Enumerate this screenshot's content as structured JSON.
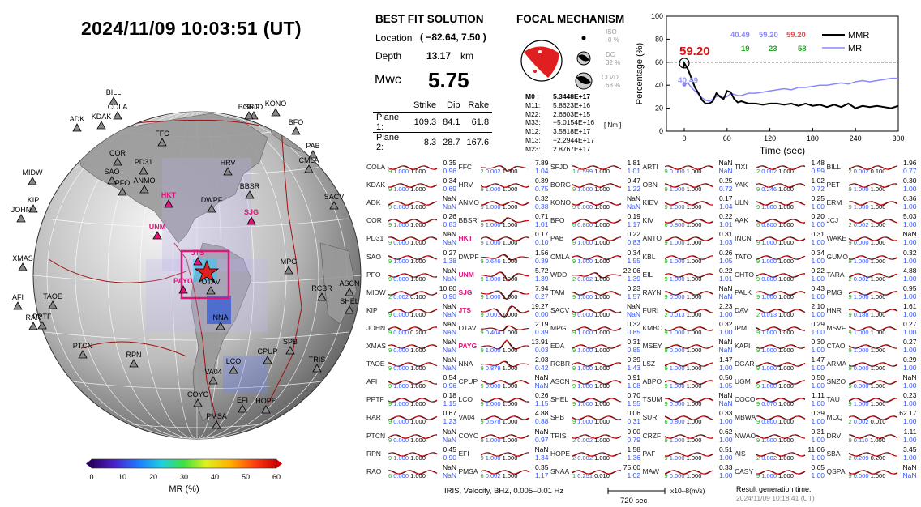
{
  "header": {
    "timestamp": "2024/11/09  10:03:51 (UT)"
  },
  "solution": {
    "heading": "BEST FIT SOLUTION",
    "location_label": "Location",
    "location_value": "( −82.64,  7.50 )",
    "depth_label": "Depth",
    "depth_value": "13.17",
    "depth_unit": "km",
    "mw_label": "Mwc",
    "mw_value": "5.75",
    "plane_cols": [
      "Strike",
      "Dip",
      "Rake"
    ],
    "planes": [
      {
        "label": "Plane 1:",
        "strike": "109.3",
        "dip": "84.1",
        "rake": "61.8"
      },
      {
        "label": "Plane 2:",
        "strike": "8.3",
        "dip": "28.7",
        "rake": "167.6"
      }
    ]
  },
  "focal": {
    "heading": "FOCAL MECHANISM",
    "iso_label": "ISO",
    "iso_value": "0 %",
    "dc_label": "DC",
    "dc_value": "32 %",
    "clvd_label": "CLVD",
    "clvd_value": "68 %",
    "unit": "[ Nm ]",
    "moments": [
      {
        "k": "M0 :",
        "v": "5.3448E+17"
      },
      {
        "k": "M11:",
        "v": "5.8623E+16"
      },
      {
        "k": "M22:",
        "v": "2.6603E+15"
      },
      {
        "k": "M33:",
        "v": "−5.0154E+16"
      },
      {
        "k": "M12:",
        "v": "3.5818E+17"
      },
      {
        "k": "M13:",
        "v": "−2.2944E+17"
      },
      {
        "k": "M23:",
        "v": "2.8767E+17"
      }
    ]
  },
  "chart_data": {
    "type": "line",
    "xlabel": "Time (sec)",
    "ylabel": "Percentage (%)",
    "xlim": [
      -25,
      300
    ],
    "ylim": [
      0,
      100
    ],
    "xticks": [
      0,
      60,
      120,
      180,
      240,
      300
    ],
    "yticks": [
      0,
      20,
      40,
      60,
      80,
      100
    ],
    "reference_line": 60,
    "best_label": "59.20",
    "mr_label": "40.49",
    "legend_values": {
      "blue": [
        "40.49",
        "59.20"
      ],
      "red": [
        "59.20"
      ],
      "green": [
        "19",
        "23",
        "58"
      ]
    },
    "series": [
      {
        "name": "MMR",
        "color": "#000000",
        "x": [
          -1,
          0,
          5,
          10,
          15,
          20,
          25,
          30,
          35,
          40,
          45,
          50,
          55,
          60,
          65,
          70,
          75,
          80,
          90,
          100,
          110,
          120,
          130,
          140,
          150,
          160,
          170,
          180,
          190,
          200,
          210,
          220,
          230,
          240,
          250,
          260,
          270,
          280,
          290,
          300
        ],
        "y": [
          55,
          59.2,
          54,
          46,
          38,
          33,
          27,
          24,
          24,
          26,
          33,
          30,
          28,
          35,
          34,
          28,
          25,
          26,
          24,
          24,
          23,
          24,
          24,
          23,
          24,
          22,
          24,
          22,
          23,
          21,
          23,
          21,
          24,
          20,
          22,
          21,
          22,
          21,
          20,
          22
        ]
      },
      {
        "name": "MR",
        "color": "#8888ff",
        "x": [
          -1,
          0,
          5,
          10,
          15,
          20,
          25,
          30,
          35,
          40,
          45,
          50,
          55,
          60,
          65,
          70,
          75,
          80,
          90,
          100,
          110,
          120,
          130,
          140,
          150,
          160,
          170,
          180,
          190,
          200,
          210,
          220,
          230,
          240,
          250,
          260,
          270,
          280,
          290,
          300
        ],
        "y": [
          40,
          40.49,
          42,
          38,
          35,
          32,
          29,
          27,
          26,
          28,
          30,
          31,
          29,
          30,
          33,
          32,
          31,
          31,
          33,
          33,
          34,
          35,
          36,
          37,
          36,
          38,
          38,
          39,
          40,
          40,
          41,
          42,
          41,
          43,
          44,
          43,
          44,
          45,
          46,
          46
        ]
      }
    ]
  },
  "globe": {
    "stations": [
      {
        "n": "BILL",
        "red": false
      },
      {
        "n": "COLA",
        "red": false
      },
      {
        "n": "ADK",
        "red": false
      },
      {
        "n": "KDAK",
        "red": false
      },
      {
        "n": "SFJD",
        "red": false
      },
      {
        "n": "BORG",
        "red": false
      },
      {
        "n": "KONO",
        "red": false
      },
      {
        "n": "BFO",
        "red": false
      },
      {
        "n": "FFC",
        "red": false
      },
      {
        "n": "COR",
        "red": false
      },
      {
        "n": "PD31",
        "red": false
      },
      {
        "n": "SAO",
        "red": false
      },
      {
        "n": "PFO",
        "red": false
      },
      {
        "n": "ANMO",
        "red": false
      },
      {
        "n": "HRV",
        "red": false
      },
      {
        "n": "PAB",
        "red": false
      },
      {
        "n": "CMLA",
        "red": false
      },
      {
        "n": "BBSR",
        "red": false
      },
      {
        "n": "MIDW",
        "red": false
      },
      {
        "n": "KIP",
        "red": false
      },
      {
        "n": "JOHN",
        "red": false
      },
      {
        "n": "HKT",
        "red": true
      },
      {
        "n": "DWPF",
        "red": false
      },
      {
        "n": "UNM",
        "red": true
      },
      {
        "n": "SJG",
        "red": true
      },
      {
        "n": "SACV",
        "red": false
      },
      {
        "n": "JTS",
        "red": true
      },
      {
        "n": "XMAS",
        "red": false
      },
      {
        "n": "MPG",
        "red": false
      },
      {
        "n": "PAYG",
        "red": true
      },
      {
        "n": "OTAV",
        "red": false
      },
      {
        "n": "ASCN",
        "red": false
      },
      {
        "n": "RCBR",
        "red": false
      },
      {
        "n": "SHEL",
        "red": false
      },
      {
        "n": "AFI",
        "red": false
      },
      {
        "n": "TAOE",
        "red": false
      },
      {
        "n": "RAR",
        "red": false
      },
      {
        "n": "PPTF",
        "red": false
      },
      {
        "n": "NNA",
        "red": false
      },
      {
        "n": "PTCN",
        "red": false
      },
      {
        "n": "RPN",
        "red": false
      },
      {
        "n": "SPB",
        "red": false
      },
      {
        "n": "CPUP",
        "red": false
      },
      {
        "n": "LCO",
        "red": false
      },
      {
        "n": "TRIS",
        "red": false
      },
      {
        "n": "VA04",
        "red": false
      },
      {
        "n": "COYC",
        "red": false
      },
      {
        "n": "EFI",
        "red": false
      },
      {
        "n": "HOPE",
        "red": false
      },
      {
        "n": "PMSA",
        "red": false
      }
    ],
    "colorbar": {
      "label": "MR (%)",
      "ticks": [
        "0",
        "10",
        "20",
        "30",
        "40",
        "50",
        "60"
      ]
    }
  },
  "traces": [
    [
      "COLA",
      "0.35",
      "0.96",
      "9",
      "1.000",
      "1.000",
      false
    ],
    [
      "KDAK",
      "0.34",
      "0.69",
      "9",
      "1.000",
      "1.000",
      false
    ],
    [
      "ADK",
      "NaN",
      "NaN",
      "9",
      "0.000",
      "1.000",
      false
    ],
    [
      "COR",
      "0.26",
      "0.83",
      "9",
      "1.000",
      "1.000",
      false
    ],
    [
      "PD31",
      "NaN",
      "NaN",
      "9",
      "0.000",
      "1.000",
      false
    ],
    [
      "SAO",
      "0.27",
      "1.38",
      "9",
      "1.000",
      "1.000",
      false
    ],
    [
      "PFO",
      "NaN",
      "NaN",
      "9",
      "0.000",
      "1.000",
      false
    ],
    [
      "MIDW",
      "10.80",
      "0.90",
      "2",
      "0.002",
      "0.100",
      false
    ],
    [
      "KIP",
      "NaN",
      "NaN",
      "9",
      "0.000",
      "1.000",
      false
    ],
    [
      "JOHN",
      "NaN",
      "NaN",
      "9",
      "0.000",
      "0.200",
      false
    ],
    [
      "XMAS",
      "NaN",
      "NaN",
      "9",
      "0.000",
      "1.000",
      false
    ],
    [
      "TAOE",
      "NaN",
      "NaN",
      "9",
      "0.000",
      "1.000",
      false
    ],
    [
      "AFI",
      "0.54",
      "0.96",
      "9",
      "1.000",
      "1.000",
      false
    ],
    [
      "PPTF",
      "0.18",
      "1.15",
      "9",
      "1.000",
      "1.000",
      false
    ],
    [
      "RAR",
      "0.67",
      "1.23",
      "9",
      "0.000",
      "1.000",
      false
    ],
    [
      "PTCN",
      "NaN",
      "NaN",
      "9",
      "0.000",
      "1.000",
      false
    ],
    [
      "RPN",
      "0.45",
      "0.90",
      "9",
      "1.000",
      "1.000",
      false
    ],
    [
      "RAO",
      "NaN",
      "NaN",
      "6",
      "0.000",
      "1.000",
      false
    ],
    [
      "FFC",
      "7.89",
      "1.04",
      "2",
      "0.002",
      "1.000",
      false
    ],
    [
      "HRV",
      "0.39",
      "0.75",
      "9",
      "1.000",
      "1.000",
      false
    ],
    [
      "ANMO",
      "0.32",
      "0.38",
      "9",
      "1.000",
      "1.000",
      false
    ],
    [
      "BBSR",
      "0.71",
      "1.01",
      "9",
      "1.000",
      "1.000",
      false
    ],
    [
      "HKT",
      "0.17",
      "0.10",
      "9",
      "1.000",
      "1.000",
      true
    ],
    [
      "DWPF",
      "1.56",
      "0.39",
      "9",
      "0.646",
      "1.000",
      false
    ],
    [
      "UNM",
      "5.72",
      "1.39",
      "9",
      "1.000",
      "1.000",
      true
    ],
    [
      "SJG",
      "7.94",
      "0.27",
      "9",
      "1.000",
      "1.000",
      true
    ],
    [
      "JTS",
      "19.27",
      "0.00",
      "9",
      "0.001",
      "1.000",
      true
    ],
    [
      "OTAV",
      "2.19",
      "0.39",
      "9",
      "0.404",
      "1.000",
      false
    ],
    [
      "PAYG",
      "13.91",
      "0.03",
      "9",
      "1.000",
      "1.000",
      true
    ],
    [
      "NNA",
      "2.03",
      "0.42",
      "9",
      "0.879",
      "1.000",
      false
    ],
    [
      "CPUP",
      "NaN",
      "NaN",
      "9",
      "0.000",
      "1.000",
      false
    ],
    [
      "LCO",
      "0.26",
      "1.15",
      "9",
      "1.000",
      "1.000",
      false
    ],
    [
      "VA04",
      "4.88",
      "0.88",
      "9",
      "0.578",
      "1.000",
      false
    ],
    [
      "COYC",
      "NaN",
      "0.97",
      "9",
      "1.000",
      "1.000",
      false
    ],
    [
      "EFI",
      "NaN",
      "1.34",
      "9",
      "1.000",
      "1.000",
      false
    ],
    [
      "PMSA",
      "0.35",
      "1.17",
      "6",
      "0.002",
      "1.000",
      false
    ],
    [
      "SFJD",
      "1.81",
      "1.01",
      "1",
      "0.599",
      "1.000",
      false
    ],
    [
      "BORG",
      "0.47",
      "1.22",
      "9",
      "1.000",
      "1.000",
      false
    ],
    [
      "KONO",
      "NaN",
      "NaN",
      "9",
      "0.000",
      "1.000",
      false
    ],
    [
      "BFO",
      "0.19",
      "1.17",
      "6",
      "0.800",
      "1.000",
      false
    ],
    [
      "PAB",
      "0.22",
      "0.83",
      "9",
      "1.000",
      "1.000",
      false
    ],
    [
      "CMLA",
      "0.34",
      "1.55",
      "9",
      "1.000",
      "1.000",
      false
    ],
    [
      "WDD",
      "22.06",
      "1.39",
      "2",
      "0.002",
      "1.000",
      false
    ],
    [
      "TAM",
      "0.23",
      "1.57",
      "9",
      "1.000",
      "1.000",
      false
    ],
    [
      "SACV",
      "NaN",
      "NaN",
      "9",
      "0.000",
      "1.000",
      false
    ],
    [
      "MPG",
      "0.32",
      "0.85",
      "9",
      "1.000",
      "1.000",
      false
    ],
    [
      "EDA",
      "0.31",
      "0.85",
      "9",
      "1.000",
      "1.000",
      false
    ],
    [
      "RCBR",
      "0.39",
      "1.43",
      "9",
      "1.000",
      "1.000",
      false
    ],
    [
      "ASCN",
      "0.91",
      "1.08",
      "9",
      "1.000",
      "1.000",
      false
    ],
    [
      "SHEL",
      "0.70",
      "1.55",
      "9",
      "1.000",
      "1.000",
      false
    ],
    [
      "SPB",
      "0.06",
      "0.31",
      "9",
      "1.000",
      "1.000",
      false
    ],
    [
      "TRIS",
      "9.00",
      "0.79",
      "2",
      "0.002",
      "1.000",
      false
    ],
    [
      "HOPE",
      "1.58",
      "1.36",
      "2",
      "0.002",
      "1.000",
      false
    ],
    [
      "SNAA",
      "75.60",
      "1.02",
      "1",
      "0.251",
      "0.010",
      false
    ],
    [
      "ARTI",
      "NaN",
      "NaN",
      "9",
      "0.000",
      "1.000",
      false
    ],
    [
      "OBN",
      "0.25",
      "0.72",
      "9",
      "1.000",
      "1.000",
      false
    ],
    [
      "KIEV",
      "0.17",
      "1.04",
      "9",
      "1.000",
      "1.000",
      false
    ],
    [
      "KIV",
      "0.22",
      "1.01",
      "6",
      "0.800",
      "1.000",
      false
    ],
    [
      "ANTO",
      "0.31",
      "1.03",
      "9",
      "1.000",
      "1.000",
      false
    ],
    [
      "KBL",
      "0.26",
      "1.05",
      "9",
      "1.000",
      "1.000",
      false
    ],
    [
      "EIL",
      "0.22",
      "1.01",
      "9",
      "1.000",
      "1.000",
      false
    ],
    [
      "RAYN",
      "NaN",
      "NaN",
      "9",
      "0.000",
      "1.000",
      false
    ],
    [
      "FURI",
      "2.23",
      "1.00",
      "2",
      "0.013",
      "1.000",
      false
    ],
    [
      "KMBO",
      "0.32",
      "1.00",
      "9",
      "1.000",
      "1.000",
      false
    ],
    [
      "MSEY",
      "NaN",
      "NaN",
      "9",
      "0.000",
      "1.000",
      false
    ],
    [
      "LSZ",
      "1.47",
      "1.00",
      "9",
      "1.000",
      "1.000",
      false
    ],
    [
      "ABPO",
      "0.50",
      "1.05",
      "9",
      "1.000",
      "1.000",
      false
    ],
    [
      "TSUM",
      "NaN",
      "NaN",
      "9",
      "0.000",
      "1.000",
      false
    ],
    [
      "SUR",
      "0.33",
      "1.00",
      "6",
      "0.800",
      "1.000",
      false
    ],
    [
      "CRZF",
      "0.62",
      "1.00",
      "9",
      "1.000",
      "1.000",
      false
    ],
    [
      "PAF",
      "0.51",
      "1.00",
      "9",
      "1.000",
      "1.000",
      false
    ],
    [
      "MAW",
      "0.33",
      "1.00",
      "9",
      "0.000",
      "1.000",
      false
    ],
    [
      "TIXI",
      "1.48",
      "0.59",
      "2",
      "0.002",
      "1.000",
      false
    ],
    [
      "YAK",
      "1.02",
      "0.72",
      "9",
      "0.246",
      "1.000",
      false
    ],
    [
      "ULN",
      "0.25",
      "1.00",
      "9",
      "1.000",
      "1.000",
      false
    ],
    [
      "AAK",
      "0.20",
      "1.00",
      "6",
      "0.800",
      "1.000",
      false
    ],
    [
      "INCN",
      "0.31",
      "1.00",
      "9",
      "1.000",
      "1.000",
      false
    ],
    [
      "TATO",
      "0.34",
      "1.00",
      "9",
      "1.000",
      "1.000",
      false
    ],
    [
      "CHTO",
      "0.22",
      "1.00",
      "9",
      "0.800",
      "1.000",
      false
    ],
    [
      "PALK",
      "0.43",
      "1.00",
      "9",
      "1.000",
      "1.000",
      false
    ],
    [
      "DAV",
      "2.10",
      "1.00",
      "2",
      "0.013",
      "1.000",
      false
    ],
    [
      "IPM",
      "0.29",
      "1.00",
      "9",
      "1.000",
      "1.000",
      false
    ],
    [
      "KAPI",
      "0.30",
      "1.00",
      "9",
      "1.000",
      "1.000",
      false
    ],
    [
      "DGAR",
      "1.47",
      "1.00",
      "9",
      "1.000",
      "1.000",
      false
    ],
    [
      "UGM",
      "0.50",
      "1.00",
      "9",
      "1.000",
      "1.000",
      false
    ],
    [
      "COCO",
      "1.11",
      "1.00",
      "9",
      "0.070",
      "1.000",
      false
    ],
    [
      "MBWA",
      "0.39",
      "1.00",
      "9",
      "0.800",
      "1.000",
      false
    ],
    [
      "NWAO",
      "0.31",
      "1.00",
      "9",
      "1.000",
      "1.000",
      false
    ],
    [
      "AIS",
      "11.06",
      "1.00",
      "2",
      "0.002",
      "1.000",
      false
    ],
    [
      "CASY",
      "0.65",
      "1.00",
      "9",
      "1.000",
      "1.000",
      false
    ],
    [
      "BILL",
      "1.96",
      "0.77",
      "2",
      "0.002",
      "0.100",
      false
    ],
    [
      "PET",
      "0.30",
      "1.00",
      "9",
      "1.000",
      "1.000",
      false
    ],
    [
      "ERM",
      "0.36",
      "1.00",
      "9",
      "1.000",
      "1.000",
      false
    ],
    [
      "JCJ",
      "5.03",
      "1.00",
      "2",
      "0.002",
      "1.000",
      false
    ],
    [
      "WAKE",
      "NaN",
      "1.00",
      "9",
      "0.000",
      "1.000",
      false
    ],
    [
      "GUMO",
      "0.32",
      "1.00",
      "9",
      "1.000",
      "1.000",
      false
    ],
    [
      "TARA",
      "4.88",
      "1.00",
      "2",
      "0.002",
      "1.000",
      false
    ],
    [
      "PMG",
      "0.95",
      "1.00",
      "9",
      "1.000",
      "1.000",
      false
    ],
    [
      "HNR",
      "1.61",
      "1.00",
      "9",
      "0.188",
      "1.000",
      false
    ],
    [
      "MSVF",
      "0.27",
      "1.00",
      "9",
      "1.000",
      "1.000",
      false
    ],
    [
      "CTAO",
      "0.27",
      "1.00",
      "9",
      "1.000",
      "1.000",
      false
    ],
    [
      "ARMA",
      "0.29",
      "1.00",
      "9",
      "0.000",
      "1.000",
      false
    ],
    [
      "SNZO",
      "NaN",
      "1.00",
      "9",
      "0.000",
      "1.000",
      false
    ],
    [
      "TAU",
      "0.23",
      "1.00",
      "9",
      "1.000",
      "1.000",
      false
    ],
    [
      "MCQ",
      "62.17",
      "1.00",
      "2",
      "0.002",
      "0.010",
      false
    ],
    [
      "DRV",
      "1.11",
      "1.00",
      "9",
      "0.110",
      "1.000",
      false
    ],
    [
      "SBA",
      "3.45",
      "1.00",
      "2",
      "0.209",
      "0.200",
      false
    ],
    [
      "QSPA",
      "NaN",
      "NaN",
      "9",
      "0.000",
      "1.000",
      false
    ]
  ],
  "footer": {
    "filter": "IRIS, Velocity,   BHZ, 0.005–0.01 Hz",
    "scale": "720 sec",
    "units": "x10–8(m/s)",
    "gen_label": "Result generation time:",
    "gen_time": "2024/11/09 10:18:41 (UT)"
  }
}
